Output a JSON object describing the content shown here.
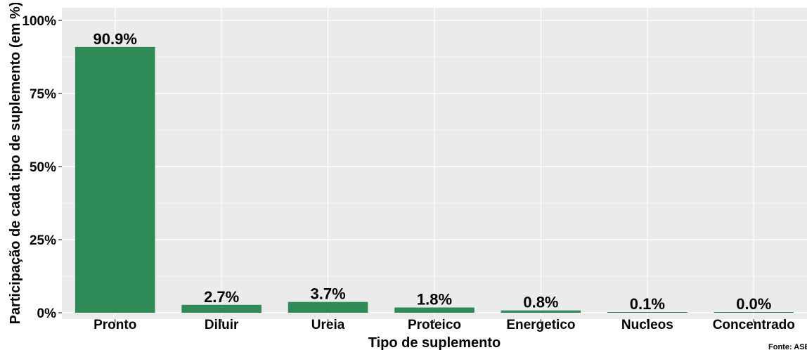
{
  "chart_data": {
    "type": "bar",
    "categories": [
      "Pronto",
      "Diluir",
      "Ureia",
      "Proteico",
      "Energetico",
      "Nucleos",
      "Concentrado"
    ],
    "values": [
      90.9,
      2.7,
      3.7,
      1.8,
      0.8,
      0.1,
      0.0
    ],
    "data_labels": [
      "90.9%",
      "2.7%",
      "3.7%",
      "1.8%",
      "0.8%",
      "0.1%",
      "0.0%"
    ],
    "xlabel": "Tipo de suplemento",
    "ylabel": "Participação de cada tipo de suplemento (em %)",
    "ylim": [
      0,
      100
    ],
    "y_ticks": [
      0,
      25,
      50,
      75,
      100
    ],
    "y_tick_labels": [
      "0%",
      "25%",
      "50%",
      "75%",
      "100%"
    ],
    "grid": true,
    "caption": "Fonte: ASBRAM",
    "colors": {
      "bar": "#2e8b57",
      "panel": "#ebebeb",
      "grid": "#ffffff"
    }
  }
}
